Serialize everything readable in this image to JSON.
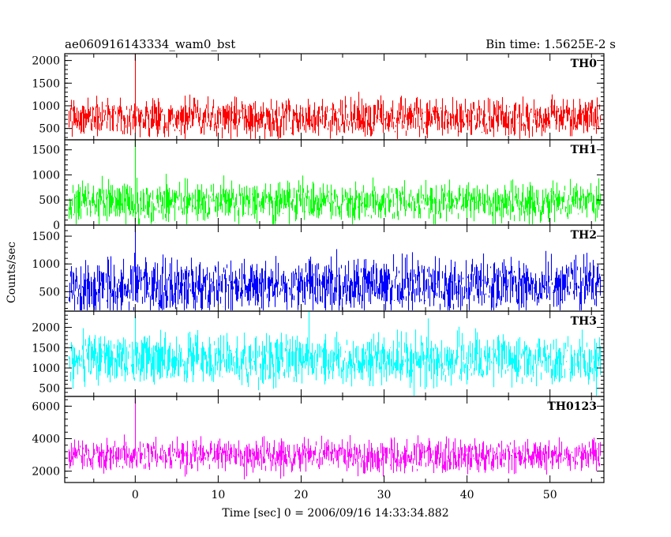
{
  "header": {
    "title": "ae060916143334_wam0_bst",
    "bin_time": "Bin time: 1.5625E-2 s"
  },
  "chart_data": {
    "type": "line",
    "xlabel": "Time [sec] 0 = 2006/09/16 14:33:34.882",
    "ylabel": "Counts/sec",
    "xlim": [
      -8.5,
      56.5
    ],
    "x_range": [
      -8,
      56
    ],
    "xticks": [
      0,
      10,
      20,
      30,
      40,
      50
    ],
    "panels": [
      {
        "name": "TH0",
        "color": "#ff0000",
        "ylim": [
          250,
          2150
        ],
        "yticks": [
          500,
          1000,
          1500,
          2000
        ],
        "level": 800,
        "spread": 350,
        "peak_at_0": 2150
      },
      {
        "name": "TH1",
        "color": "#00ff00",
        "ylim": [
          0,
          1700
        ],
        "yticks": [
          0,
          500,
          1000,
          1500
        ],
        "level": 500,
        "spread": 330,
        "peak_at_0": 1700
      },
      {
        "name": "TH2",
        "color": "#0000ff",
        "ylim": [
          150,
          1700
        ],
        "yticks": [
          500,
          1000,
          1500
        ],
        "level": 680,
        "spread": 400,
        "peak_at_0": 1700
      },
      {
        "name": "TH3",
        "color": "#00ffff",
        "ylim": [
          300,
          2400
        ],
        "yticks": [
          500,
          1000,
          1500,
          2000
        ],
        "level": 1300,
        "spread": 520,
        "peak_at_0": 2300
      },
      {
        "name": "TH0123",
        "color": "#ff00ff",
        "ylim": [
          1300,
          6600
        ],
        "yticks": [
          2000,
          4000,
          6000
        ],
        "level": 3100,
        "spread": 850,
        "peak_at_0": 6500
      }
    ]
  }
}
